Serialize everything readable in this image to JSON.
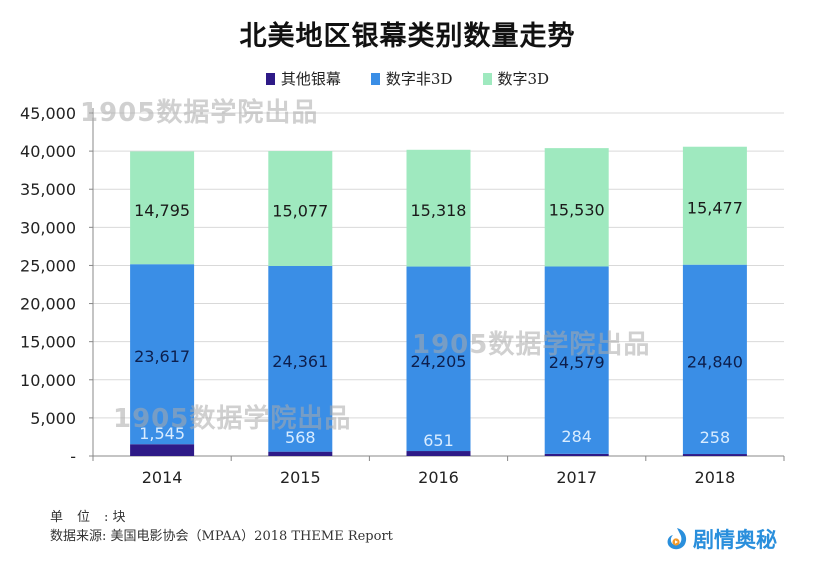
{
  "chart_data": {
    "type": "bar",
    "stacked": true,
    "title": "北美地区银幕类别数量走势",
    "xlabel": "",
    "ylabel": "",
    "categories": [
      "2014",
      "2015",
      "2016",
      "2017",
      "2018"
    ],
    "series": [
      {
        "name": "其他银幕",
        "color": "#2e1a87",
        "label_color": "#d8ecff",
        "values": [
          1545,
          568,
          651,
          284,
          258
        ]
      },
      {
        "name": "数字非3D",
        "color": "#3a8ee6",
        "label_color": "#0d1f4d",
        "values": [
          23617,
          24361,
          24205,
          24579,
          24840
        ]
      },
      {
        "name": "数字3D",
        "color": "#9fe9bf",
        "label_color": "#1a1a1a",
        "values": [
          14795,
          15077,
          15318,
          15530,
          15477
        ]
      }
    ],
    "data_labels": [
      [
        "1,545",
        "568",
        "651",
        "284",
        "258"
      ],
      [
        "23,617",
        "24,361",
        "24,205",
        "24,579",
        "24,840"
      ],
      [
        "14,795",
        "15,077",
        "15,318",
        "15,530",
        "15,477"
      ]
    ],
    "ylim": [
      0,
      45000
    ],
    "yticks": [
      0,
      5000,
      10000,
      15000,
      20000,
      25000,
      30000,
      35000,
      40000,
      45000
    ],
    "ytick_labels": [
      "-",
      "5,000",
      "10,000",
      "15,000",
      "20,000",
      "25,000",
      "30,000",
      "35,000",
      "40,000",
      "45,000"
    ],
    "grid": true,
    "legend_position": "top-center"
  },
  "legend": [
    {
      "label": "其他银幕",
      "color": "#2e1a87"
    },
    {
      "label": "数字非3D",
      "color": "#3a8ee6"
    },
    {
      "label": "数字3D",
      "color": "#9fe9bf"
    }
  ],
  "footer": {
    "unit_key": "单位",
    "unit_value": ": 块",
    "source_key": "数据来源",
    "source_value": ": 美国电影协会（MPAA）2018 THEME Report"
  },
  "watermark": "1905数据学院出品",
  "brand": "剧情奥秘"
}
